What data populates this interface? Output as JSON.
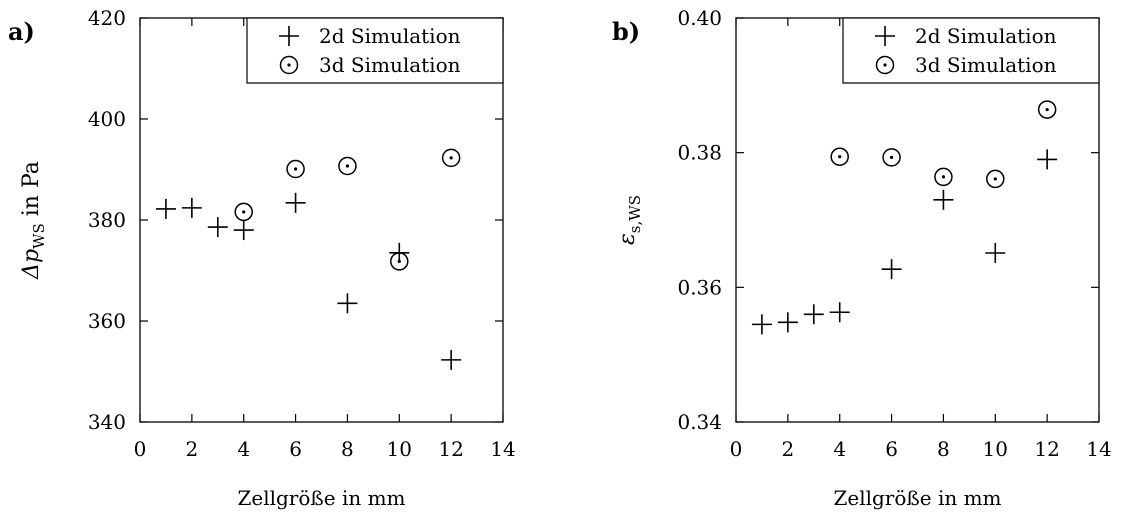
{
  "chart_data": [
    {
      "panel_label": "a)",
      "type": "scatter",
      "title": "",
      "xlabel": "Zellgröße in mm",
      "ylabel": "Δp",
      "ylabel_sub": "WS",
      "ylabel_suffix": " in Pa",
      "xlim": [
        0,
        14
      ],
      "ylim": [
        340,
        420
      ],
      "xticks": [
        0,
        2,
        4,
        6,
        8,
        10,
        12,
        14
      ],
      "yticks": [
        340,
        360,
        380,
        400,
        420
      ],
      "grid": false,
      "legend_position": "top-right",
      "series": [
        {
          "name": "2d Simulation",
          "marker": "plus",
          "x": [
            1,
            2,
            3,
            4,
            6,
            8,
            10,
            12
          ],
          "y": [
            382.2,
            382.4,
            378.6,
            378.0,
            383.4,
            363.5,
            373.5,
            352.3
          ]
        },
        {
          "name": "3d Simulation",
          "marker": "circle-dot",
          "x": [
            4,
            6,
            8,
            10,
            12
          ],
          "y": [
            381.6,
            390.1,
            390.7,
            371.8,
            392.3
          ]
        }
      ]
    },
    {
      "panel_label": "b)",
      "type": "scatter",
      "title": "",
      "xlabel": "Zellgröße in mm",
      "ylabel": "ε",
      "ylabel_sub": "s,WS",
      "ylabel_suffix": "",
      "xlim": [
        0,
        14
      ],
      "ylim": [
        0.34,
        0.4
      ],
      "xticks": [
        0,
        2,
        4,
        6,
        8,
        10,
        12,
        14
      ],
      "yticks": [
        0.34,
        0.36,
        0.38,
        0.4
      ],
      "grid": false,
      "legend_position": "top-right",
      "series": [
        {
          "name": "2d Simulation",
          "marker": "plus",
          "x": [
            1,
            2,
            3,
            4,
            6,
            8,
            10,
            12
          ],
          "y": [
            0.3545,
            0.3548,
            0.356,
            0.3563,
            0.3627,
            0.373,
            0.3651,
            0.379
          ]
        },
        {
          "name": "3d Simulation",
          "marker": "circle-dot",
          "x": [
            4,
            6,
            8,
            10,
            12
          ],
          "y": [
            0.3794,
            0.3793,
            0.3764,
            0.3761,
            0.3864
          ]
        }
      ]
    }
  ]
}
